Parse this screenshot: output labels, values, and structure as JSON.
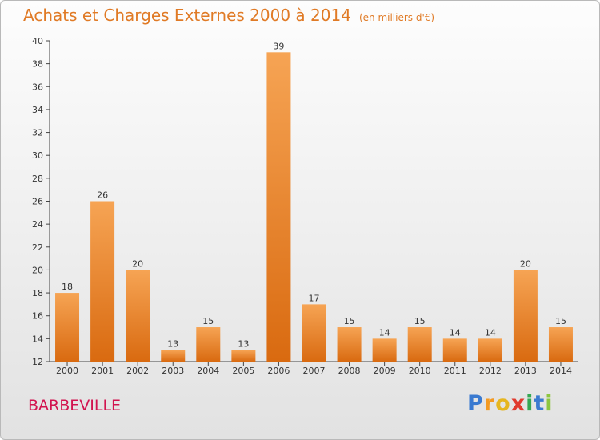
{
  "header": {
    "title": "Achats et Charges Externes 2000 à 2014",
    "unit": "(en milliers d'€)"
  },
  "commune": "BARBEVILLE",
  "logo": {
    "text": "Proxiti"
  },
  "colors": {
    "bar_top": "#f6a454",
    "bar_bottom": "#d96a10",
    "title": "#e07a25",
    "commune": "#d2144f"
  },
  "chart_data": {
    "type": "bar",
    "title": "Achats et Charges Externes 2000 à 2014",
    "subtitle": "(en milliers d'€)",
    "xlabel": "",
    "ylabel": "",
    "categories": [
      "2000",
      "2001",
      "2002",
      "2003",
      "2004",
      "2005",
      "2006",
      "2007",
      "2008",
      "2009",
      "2010",
      "2011",
      "2012",
      "2013",
      "2014"
    ],
    "values": [
      18,
      26,
      20,
      13,
      15,
      13,
      39,
      17,
      15,
      14,
      15,
      14,
      14,
      20,
      15
    ],
    "ylim": [
      12,
      40
    ],
    "yticks": [
      12,
      14,
      16,
      18,
      20,
      22,
      24,
      26,
      28,
      30,
      32,
      34,
      36,
      38,
      40
    ],
    "grid": false,
    "legend": "none"
  }
}
